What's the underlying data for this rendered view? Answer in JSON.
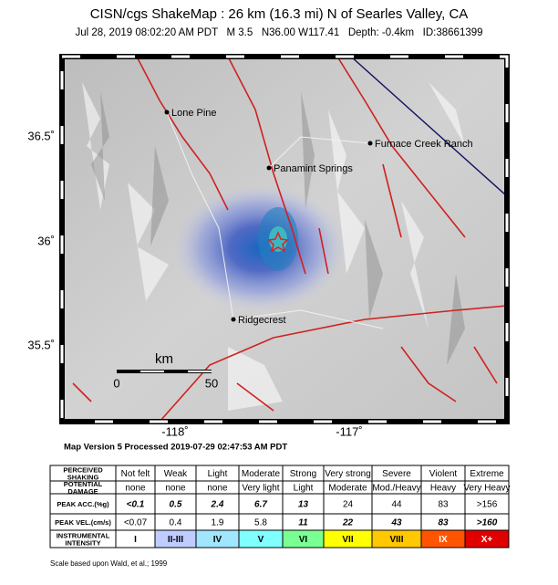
{
  "header": {
    "title": "CISN/cgs ShakeMap : 26 km (16.3 mi) N of Searles Valley, CA",
    "subtitle": "Jul 28, 2019 08:02:20 AM PDT   M 3.5   N36.00 W117.41   Depth: -0.4km   ID:38661399"
  },
  "map": {
    "lat_labels": [
      "36.5˚",
      "36˚",
      "35.5˚"
    ],
    "lon_labels": [
      "-118˚",
      "-117˚"
    ],
    "places": [
      "Lone Pine",
      "Furnace Creek Ranch",
      "Panamint Springs",
      "Ridgecrest"
    ],
    "scale": {
      "unit": "km",
      "ticks": [
        "0",
        "50"
      ]
    }
  },
  "version": "Map Version 5 Processed 2019-07-29 02:47:53 AM PDT",
  "table": {
    "rows": [
      [
        "PERCEIVED SHAKING",
        "Not felt",
        "Weak",
        "Light",
        "Moderate",
        "Strong",
        "Very strong",
        "Severe",
        "Violent",
        "Extreme"
      ],
      [
        "POTENTIAL DAMAGE",
        "none",
        "none",
        "none",
        "Very light",
        "Light",
        "Moderate",
        "Mod./Heavy",
        "Heavy",
        "Very Heavy"
      ],
      [
        "PEAK ACC.(%g)",
        "<0.1",
        "0.5",
        "2.4",
        "6.7",
        "13",
        "24",
        "44",
        "83",
        ">156"
      ],
      [
        "PEAK VEL.(cm/s)",
        "<0.07",
        "0.4",
        "1.9",
        "5.8",
        "11",
        "22",
        "43",
        "83",
        ">160"
      ],
      [
        "INSTRUMENTAL INTENSITY",
        "I",
        "II-III",
        "IV",
        "V",
        "VI",
        "VII",
        "VIII",
        "IX",
        "X+"
      ]
    ]
  },
  "note": "Scale based upon Wald, et al.; 1999"
}
